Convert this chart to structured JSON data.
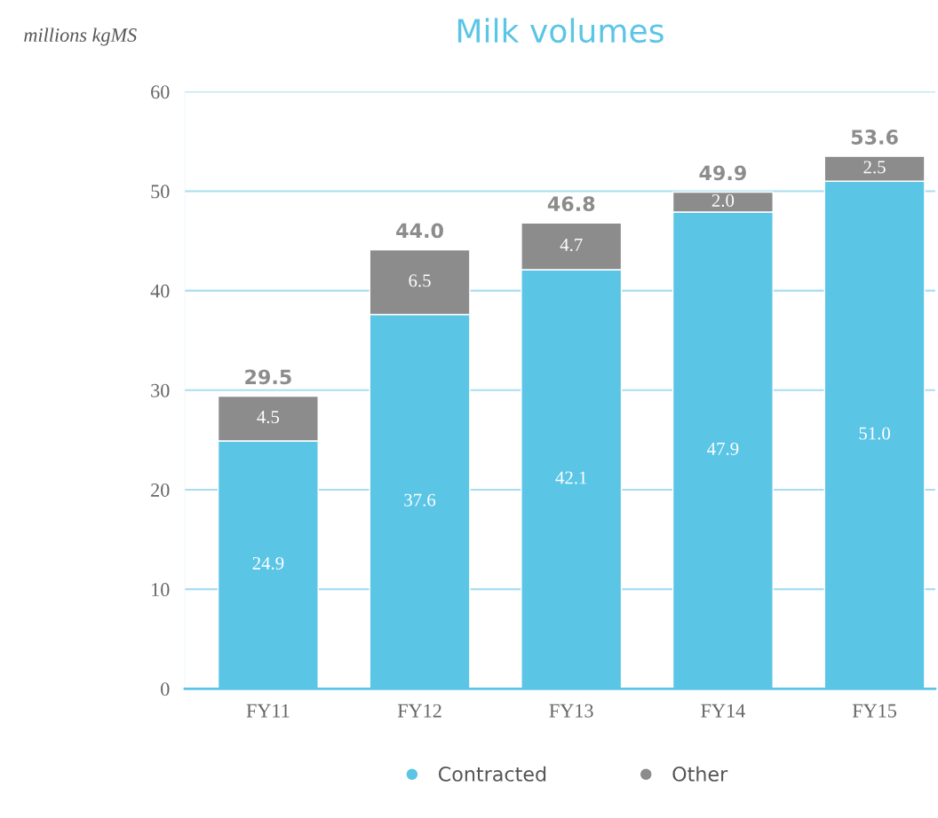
{
  "chart_data": {
    "type": "bar",
    "title": "Milk volumes",
    "ylabel": "millions kgMS",
    "categories": [
      "FY11",
      "FY12",
      "FY13",
      "FY14",
      "FY15"
    ],
    "series": [
      {
        "name": "Contracted",
        "color": "#5bc5e6",
        "values": [
          24.9,
          37.6,
          42.1,
          47.9,
          51.0
        ],
        "value_labels": [
          "24.9",
          "37.6",
          "42.1",
          "47.9",
          "51.0"
        ]
      },
      {
        "name": "Other",
        "color": "#8c8c8c",
        "values": [
          4.5,
          6.5,
          4.7,
          2.0,
          2.5
        ],
        "value_labels": [
          "4.5",
          "6.5",
          "4.7",
          "2.0",
          "2.5"
        ]
      }
    ],
    "stacked": true,
    "totals": [
      "29.5",
      "44.0",
      "46.8",
      "49.9",
      "53.6"
    ],
    "ylim": [
      0,
      60
    ],
    "yticks": [
      0,
      10,
      20,
      30,
      40,
      50,
      60
    ],
    "grid": "y",
    "legend": "bottom"
  }
}
